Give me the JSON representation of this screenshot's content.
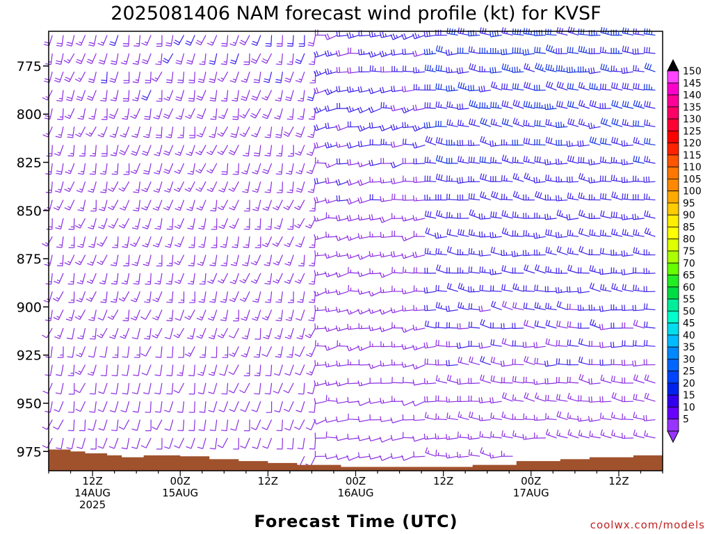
{
  "chart_data": {
    "type": "wind-barb-timeseries",
    "title": "2025081406 NAM forecast wind profile (kt) for KVSF",
    "xlabel": "Forecast Time (UTC)",
    "credit": "coolwx.com/models",
    "y_ticks": [
      "775",
      "800",
      "825",
      "850",
      "875",
      "900",
      "925",
      "950",
      "975"
    ],
    "y_tick_values": [
      775,
      800,
      825,
      850,
      875,
      900,
      925,
      950,
      975
    ],
    "y_range_hpa": [
      757,
      985
    ],
    "x_range_hours": [
      6,
      90
    ],
    "x_ticks": [
      {
        "hour": 12,
        "lines": [
          "12Z",
          "14AUG",
          "2025"
        ]
      },
      {
        "hour": 24,
        "lines": [
          "00Z",
          "15AUG"
        ]
      },
      {
        "hour": 36,
        "lines": [
          "12Z"
        ]
      },
      {
        "hour": 48,
        "lines": [
          "00Z",
          "16AUG"
        ]
      },
      {
        "hour": 60,
        "lines": [
          "12Z"
        ]
      },
      {
        "hour": 72,
        "lines": [
          "00Z",
          "17AUG"
        ]
      },
      {
        "hour": 84,
        "lines": [
          "12Z"
        ]
      }
    ],
    "colorbar": {
      "units": "kt",
      "labels": [
        "150",
        "145",
        "140",
        "135",
        "130",
        "125",
        "120",
        "115",
        "110",
        "105",
        "100",
        "95",
        "90",
        "85",
        "80",
        "75",
        "70",
        "65",
        "60",
        "55",
        "50",
        "45",
        "40",
        "35",
        "30",
        "25",
        "20",
        "15",
        "10",
        "5"
      ],
      "colors": [
        "#ff44ff",
        "#ff00cc",
        "#ff0099",
        "#ff0066",
        "#ff0033",
        "#ff0000",
        "#ff2200",
        "#ff5500",
        "#ff7700",
        "#ff8800",
        "#ffaa00",
        "#ffcc00",
        "#ffee00",
        "#ffff00",
        "#ddff00",
        "#aaff00",
        "#66ff00",
        "#22ee22",
        "#00dd44",
        "#00ee99",
        "#00ffcc",
        "#00ddee",
        "#00bbff",
        "#0088ff",
        "#0066ff",
        "#0044ff",
        "#0022ee",
        "#3300ee",
        "#6600ff",
        "#9933ff"
      ],
      "top_arrow_color": "#000000",
      "bottom_arrow_color": "#9933ff"
    },
    "surface_pressure_hpa": [
      {
        "hour": 6,
        "p": 974
      },
      {
        "hour": 9,
        "p": 975
      },
      {
        "hour": 11,
        "p": 976
      },
      {
        "hour": 14,
        "p": 977
      },
      {
        "hour": 16,
        "p": 978
      },
      {
        "hour": 19,
        "p": 977
      },
      {
        "hour": 24,
        "p": 977.5
      },
      {
        "hour": 28,
        "p": 979
      },
      {
        "hour": 32,
        "p": 980
      },
      {
        "hour": 36,
        "p": 981
      },
      {
        "hour": 40,
        "p": 982
      },
      {
        "hour": 46,
        "p": 983
      },
      {
        "hour": 52,
        "p": 983
      },
      {
        "hour": 60,
        "p": 983
      },
      {
        "hour": 64,
        "p": 982
      },
      {
        "hour": 70,
        "p": 980
      },
      {
        "hour": 76,
        "p": 979
      },
      {
        "hour": 80,
        "p": 978
      },
      {
        "hour": 86,
        "p": 977
      },
      {
        "hour": 90,
        "p": 975
      }
    ],
    "surface_color": "#a0522d",
    "wind_regimes": [
      {
        "hours": [
          6,
          44
        ],
        "from_deg": 195,
        "speed_kt": [
          10,
          20
        ]
      },
      {
        "hours": [
          44,
          58
        ],
        "from_deg": 260,
        "speed_kt": [
          10,
          25
        ]
      },
      {
        "hours": [
          58,
          90
        ],
        "from_deg": 275,
        "speed_kt": [
          15,
          35
        ]
      }
    ]
  }
}
